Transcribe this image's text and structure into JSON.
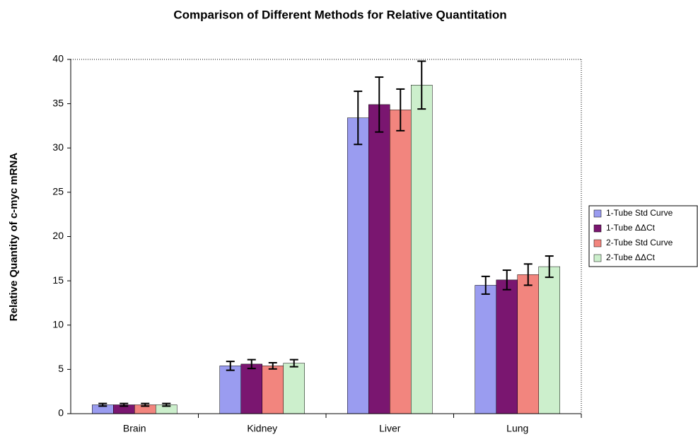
{
  "chart_data": {
    "type": "bar",
    "title": "Comparison of Different Methods for Relative Quantitation",
    "y_label": "Relative Quantity of c-myc mRNA",
    "categories": [
      "Brain",
      "Kidney",
      "Liver",
      "Lung"
    ],
    "series": [
      {
        "name": "1-Tube Std Curve",
        "color": "#9a9cf0",
        "values": [
          1.0,
          5.4,
          33.4,
          14.5
        ],
        "errors": [
          0.15,
          0.5,
          3.0,
          1.0
        ]
      },
      {
        "name": "1-Tube ΔΔCt",
        "color": "#7a1670",
        "values": [
          1.0,
          5.6,
          34.9,
          15.1
        ],
        "errors": [
          0.15,
          0.5,
          3.1,
          1.1
        ]
      },
      {
        "name": "2-Tube Std Curve",
        "color": "#f2857e",
        "values": [
          1.0,
          5.4,
          34.3,
          15.7
        ],
        "errors": [
          0.15,
          0.35,
          2.35,
          1.2
        ]
      },
      {
        "name": "2-Tube ΔΔCt",
        "color": "#ccefcc",
        "values": [
          1.0,
          5.7,
          37.1,
          16.6
        ],
        "errors": [
          0.15,
          0.4,
          2.7,
          1.2
        ]
      }
    ],
    "ylim": [
      0,
      40
    ],
    "yticks": [
      0,
      5,
      10,
      15,
      20,
      25,
      30,
      35,
      40
    ],
    "grid": false,
    "legend": "right"
  }
}
